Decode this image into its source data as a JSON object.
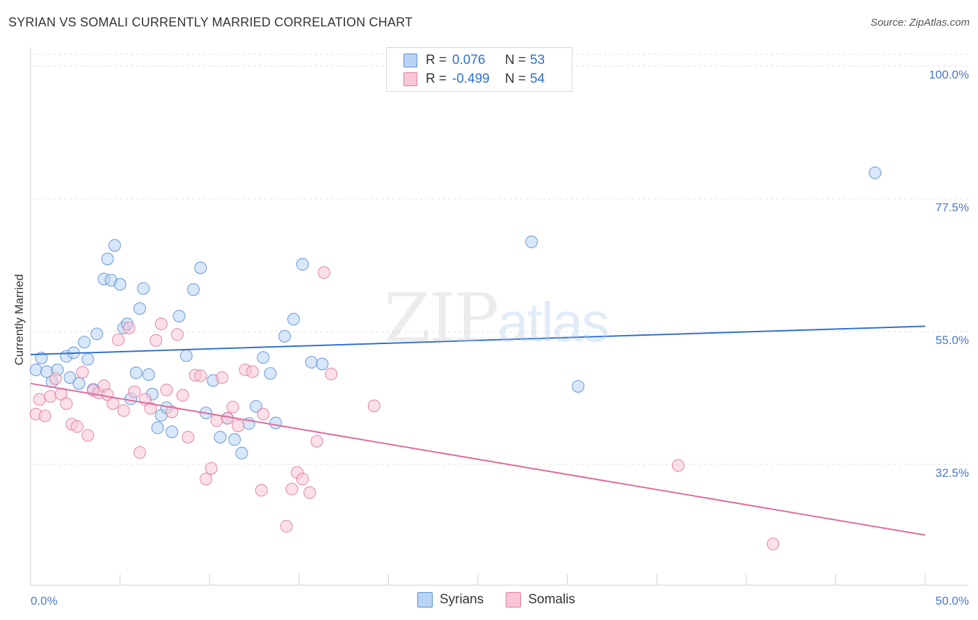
{
  "header": {
    "title": "SYRIAN VS SOMALI CURRENTLY MARRIED CORRELATION CHART",
    "source": "Source: ZipAtlas.com"
  },
  "watermark": {
    "zip": "ZIP",
    "atlas": "atlas"
  },
  "legend": {
    "rows": [
      {
        "r_label": "R =",
        "r_value": "0.076",
        "n_label": "N =",
        "n_value": "53",
        "color": "#b8d3f4",
        "border": "#5b8fd6"
      },
      {
        "r_label": "R =",
        "r_value": "-0.499",
        "n_label": "N =",
        "n_value": "54",
        "color": "#f9c6d6",
        "border": "#e07aa0"
      }
    ]
  },
  "bottom_legend": {
    "syrians": "Syrians",
    "somalis": "Somalis"
  },
  "chart_data": {
    "type": "scatter",
    "title": "SYRIAN VS SOMALI CURRENTLY MARRIED CORRELATION CHART",
    "xlabel": "",
    "ylabel": "Currently Married",
    "xlim": [
      0,
      50
    ],
    "ylim": [
      12,
      102
    ],
    "x_tick_labels": [
      "0.0%",
      "50.0%"
    ],
    "y_ticks": [
      32.5,
      55.0,
      77.5,
      100.0
    ],
    "y_tick_labels": [
      "32.5%",
      "55.0%",
      "77.5%",
      "100.0%"
    ],
    "grid": true,
    "series": [
      {
        "name": "Syrians",
        "color": "#5b8fd6",
        "fill": "#b8d3f4",
        "trend": {
          "x": [
            0,
            50
          ],
          "y": [
            51.1,
            55.9
          ]
        },
        "points": [
          [
            0.3,
            48.5
          ],
          [
            0.6,
            50.5
          ],
          [
            0.9,
            48.2
          ],
          [
            1.2,
            46.5
          ],
          [
            1.5,
            48.5
          ],
          [
            2.0,
            50.8
          ],
          [
            2.2,
            47.2
          ],
          [
            2.4,
            51.4
          ],
          [
            2.7,
            46.2
          ],
          [
            3.0,
            53.2
          ],
          [
            3.2,
            50.3
          ],
          [
            3.5,
            45.2
          ],
          [
            3.7,
            54.6
          ],
          [
            4.1,
            63.9
          ],
          [
            4.3,
            67.3
          ],
          [
            4.5,
            63.7
          ],
          [
            4.7,
            69.6
          ],
          [
            5.0,
            63.0
          ],
          [
            5.2,
            55.6
          ],
          [
            5.4,
            56.3
          ],
          [
            5.6,
            43.6
          ],
          [
            5.9,
            48.0
          ],
          [
            6.1,
            58.9
          ],
          [
            6.3,
            62.3
          ],
          [
            6.6,
            47.7
          ],
          [
            6.8,
            44.4
          ],
          [
            7.1,
            38.7
          ],
          [
            7.3,
            40.8
          ],
          [
            7.6,
            42.1
          ],
          [
            7.9,
            38.0
          ],
          [
            8.3,
            57.6
          ],
          [
            8.7,
            50.9
          ],
          [
            9.1,
            62.1
          ],
          [
            9.5,
            65.8
          ],
          [
            9.8,
            41.2
          ],
          [
            10.2,
            46.7
          ],
          [
            10.6,
            37.1
          ],
          [
            11.0,
            40.3
          ],
          [
            11.4,
            36.7
          ],
          [
            11.8,
            34.4
          ],
          [
            12.2,
            39.4
          ],
          [
            12.6,
            42.3
          ],
          [
            13.0,
            50.6
          ],
          [
            13.4,
            47.9
          ],
          [
            13.7,
            39.5
          ],
          [
            14.2,
            54.2
          ],
          [
            14.7,
            57.1
          ],
          [
            15.2,
            66.4
          ],
          [
            15.7,
            49.8
          ],
          [
            16.3,
            49.5
          ],
          [
            28.0,
            70.2
          ],
          [
            30.6,
            45.7
          ],
          [
            47.2,
            81.9
          ]
        ]
      },
      {
        "name": "Somalis",
        "color": "#e07aa0",
        "fill": "#f9c6d6",
        "trend": {
          "x": [
            0,
            50
          ],
          "y": [
            46.2,
            20.5
          ]
        },
        "points": [
          [
            0.3,
            41.0
          ],
          [
            0.5,
            43.5
          ],
          [
            0.8,
            40.7
          ],
          [
            1.1,
            44.0
          ],
          [
            1.4,
            47.0
          ],
          [
            1.7,
            44.4
          ],
          [
            2.0,
            42.8
          ],
          [
            2.3,
            39.3
          ],
          [
            2.6,
            38.9
          ],
          [
            2.9,
            48.1
          ],
          [
            3.2,
            37.4
          ],
          [
            3.5,
            45.0
          ],
          [
            3.8,
            44.6
          ],
          [
            4.1,
            45.8
          ],
          [
            4.3,
            44.3
          ],
          [
            4.6,
            42.8
          ],
          [
            4.9,
            53.6
          ],
          [
            5.2,
            41.6
          ],
          [
            5.5,
            55.6
          ],
          [
            5.8,
            44.8
          ],
          [
            6.1,
            34.5
          ],
          [
            6.4,
            43.5
          ],
          [
            6.7,
            42.0
          ],
          [
            7.0,
            53.5
          ],
          [
            7.3,
            56.3
          ],
          [
            7.6,
            45.1
          ],
          [
            7.9,
            41.4
          ],
          [
            8.2,
            54.5
          ],
          [
            8.5,
            44.2
          ],
          [
            8.8,
            37.1
          ],
          [
            9.2,
            47.6
          ],
          [
            9.5,
            47.5
          ],
          [
            9.8,
            30.0
          ],
          [
            10.1,
            31.8
          ],
          [
            10.4,
            39.9
          ],
          [
            10.7,
            47.2
          ],
          [
            11.0,
            40.3
          ],
          [
            11.3,
            42.2
          ],
          [
            11.6,
            39.0
          ],
          [
            12.0,
            48.5
          ],
          [
            12.4,
            48.2
          ],
          [
            13.0,
            41.0
          ],
          [
            14.3,
            22.0
          ],
          [
            14.6,
            28.3
          ],
          [
            14.9,
            31.1
          ],
          [
            15.2,
            30.0
          ],
          [
            15.6,
            27.7
          ],
          [
            16.0,
            36.4
          ],
          [
            16.4,
            65.0
          ],
          [
            16.8,
            47.8
          ],
          [
            12.9,
            28.1
          ],
          [
            19.2,
            42.4
          ],
          [
            36.2,
            32.3
          ],
          [
            41.5,
            19.0
          ]
        ]
      }
    ]
  }
}
